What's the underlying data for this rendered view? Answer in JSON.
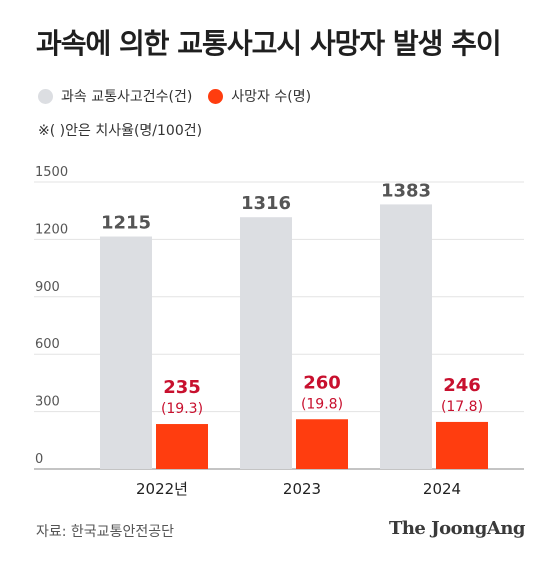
{
  "title": "과속에 의한 교통사고시 사망자 발생 추이",
  "legend": [
    {
      "label": "과속 교통사고건수(건)",
      "color": "#dcdee2"
    },
    {
      "label": "사망자 수(명)",
      "color": "#ff3d0f"
    }
  ],
  "note": "※( )안은 치사율(명/100건)",
  "source": "자료: 한국교통안전공단",
  "brand": "The JoongAng",
  "chart_data": {
    "type": "bar",
    "categories": [
      "2022년",
      "2023",
      "2024"
    ],
    "series": [
      {
        "name": "과속 교통사고건수(건)",
        "values": [
          1215,
          1316,
          1383
        ],
        "color": "#dcdee2"
      },
      {
        "name": "사망자 수(명)",
        "values": [
          235,
          260,
          246
        ],
        "color": "#ff3d0f",
        "annotations": [
          "(19.3)",
          "(19.8)",
          "(17.8)"
        ]
      }
    ],
    "ylim": [
      0,
      1500
    ],
    "yticks": [
      0,
      300,
      600,
      900,
      1200,
      1500
    ],
    "grid": true,
    "legend_position": "top-left"
  }
}
